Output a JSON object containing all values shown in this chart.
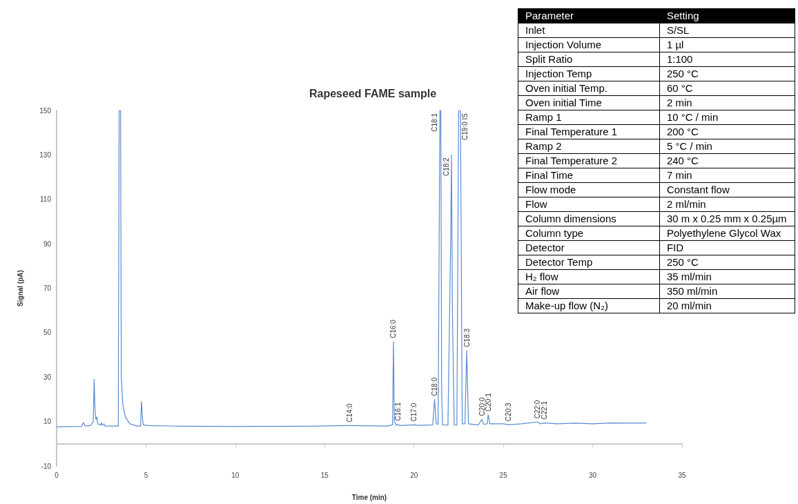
{
  "chart_data": [
    {
      "type": "line",
      "title": "Rapeseed FAME sample",
      "xlabel": "Time (min)",
      "ylabel": "Signal (pA)",
      "color": "#5b8bd0",
      "marker": "none",
      "grid": false,
      "xlim": [
        0,
        35
      ],
      "xticks": [
        0,
        5,
        10,
        15,
        20,
        25,
        30,
        35
      ],
      "ylim": [
        -10,
        150
      ],
      "yticks": [
        -10,
        10,
        30,
        50,
        70,
        90,
        110,
        130,
        150
      ],
      "x": [
        0,
        1.4,
        1.5,
        1.6,
        1.9,
        2.05,
        2.1,
        2.15,
        2.2,
        2.25,
        2.3,
        2.45,
        2.5,
        2.55,
        2.65,
        2.7,
        3.45,
        3.5,
        3.58,
        3.62,
        3.7,
        3.85,
        4.1,
        4.5,
        4.7,
        4.75,
        4.8,
        4.85,
        5.1,
        7,
        10,
        14,
        16.4,
        18.5,
        18.8,
        18.85,
        18.9,
        19.0,
        19.1,
        19.2,
        20.0,
        20.3,
        21.05,
        21.15,
        21.25,
        21.35,
        21.45,
        21.5,
        21.55,
        21.6,
        21.9,
        22.05,
        22.1,
        22.15,
        22.25,
        22.4,
        22.5,
        22.6,
        22.7,
        22.85,
        22.95,
        23.05,
        23.6,
        23.8,
        23.9,
        24.1,
        24.15,
        24.25,
        25,
        25.3,
        26.0,
        26.9,
        27.1,
        27.3,
        28,
        29,
        30,
        31,
        32,
        33
      ],
      "values": [
        7.7,
        7.8,
        9.5,
        8,
        8.2,
        10,
        29,
        15,
        11,
        12,
        9,
        8.5,
        9.5,
        8.2,
        9,
        8,
        8,
        150,
        150,
        30,
        18,
        12,
        9,
        8,
        8,
        19,
        12,
        8.5,
        8.2,
        7.9,
        7.8,
        7.9,
        8.2,
        8,
        8.5,
        46,
        10,
        8.3,
        8.8,
        8.2,
        8.5,
        8.3,
        8.5,
        20,
        9,
        8.8,
        150,
        150,
        22,
        8.5,
        8.4,
        90,
        130,
        60,
        8.5,
        8.4,
        150,
        150,
        9,
        9,
        42,
        9,
        8.5,
        11,
        8.8,
        9,
        13,
        9,
        9,
        8.6,
        9,
        9.8,
        9,
        9.4,
        9,
        9.3,
        9,
        9.4,
        9.3,
        9.4
      ],
      "annotations": [
        {
          "text": "C14:0",
          "x": 16.4,
          "y": 8.2
        },
        {
          "text": "C16:0",
          "x": 18.85,
          "y": 46
        },
        {
          "text": "C16:1",
          "x": 19.1,
          "y": 8.8
        },
        {
          "text": "C17:0",
          "x": 20.0,
          "y": 8.5
        },
        {
          "text": "C18:0",
          "x": 21.15,
          "y": 20
        },
        {
          "text": "C18:1",
          "x": 21.45,
          "y": 150
        },
        {
          "text": "C18:2",
          "x": 22.1,
          "y": 130
        },
        {
          "text": "C19:0 IS",
          "x": 22.55,
          "y": 150
        },
        {
          "text": "C18:3",
          "x": 22.95,
          "y": 42
        },
        {
          "text": "C20:0",
          "x": 23.8,
          "y": 11
        },
        {
          "text": "C20:1",
          "x": 24.15,
          "y": 13
        },
        {
          "text": "C20:3",
          "x": 25.3,
          "y": 8.6
        },
        {
          "text": "C22:0",
          "x": 26.9,
          "y": 9.8
        },
        {
          "text": "C22:1",
          "x": 27.3,
          "y": 9.4
        }
      ]
    },
    {
      "type": "other",
      "annotations": [
        "Parameter",
        "Setting",
        "Inlet",
        "S/SL",
        "Injection Volume",
        "1 µl",
        "Split Ratio",
        "1:100",
        "Injection Temp",
        "250 °C",
        "Oven initial Temp.",
        "60 °C",
        "Oven initial Time",
        "2 min",
        "Ramp 1",
        "10 °C / min",
        "Final Temperature 1",
        "200 °C",
        "Ramp 2",
        "5 °C / min",
        "Final Temperature 2",
        "240 °C",
        "Final Time",
        "7 min",
        "Flow mode",
        "Constant flow",
        "Flow",
        "2 ml/min",
        "Column dimensions",
        "30 m x 0.25 mm x 0.25µm",
        "Column type",
        "Polyethylene Glycol Wax",
        "Detector",
        "FID",
        "Detector Temp",
        "250 °C",
        "H₂ flow",
        "35 ml/min",
        "Air flow",
        "350 ml/min",
        "Make-up flow (N₂)",
        "20 ml/min"
      ]
    }
  ]
}
